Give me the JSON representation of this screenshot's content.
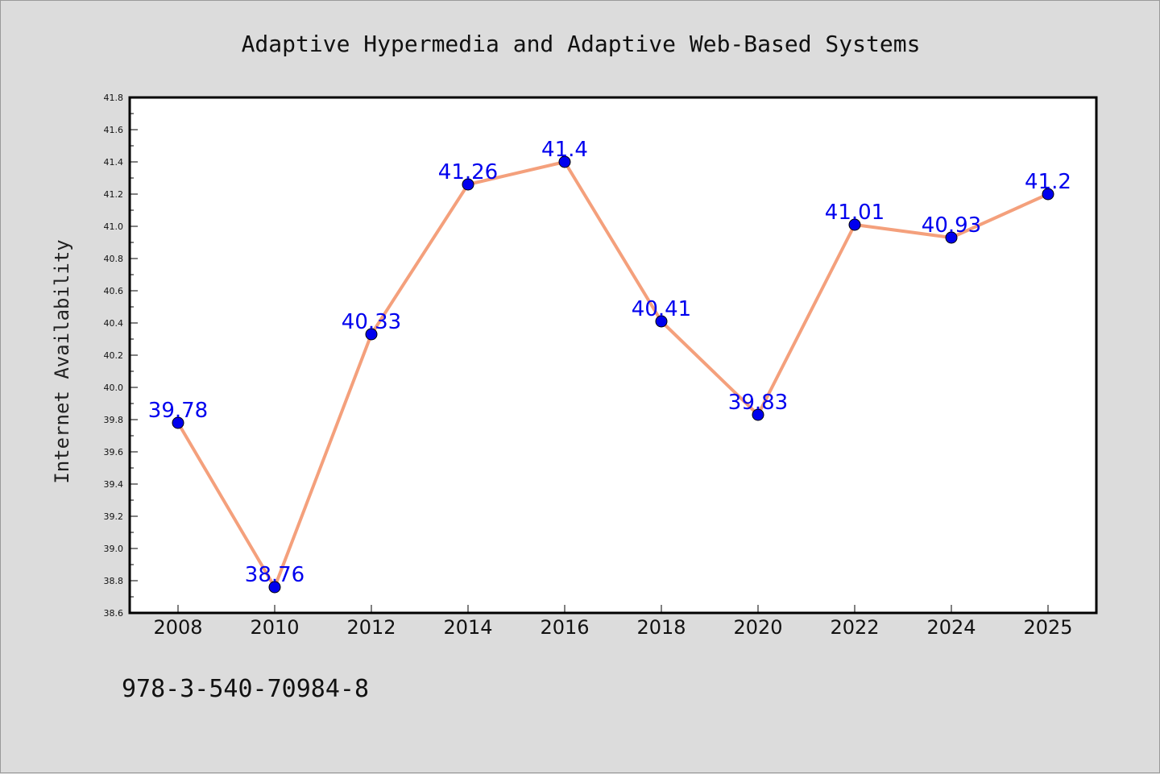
{
  "chart_data": {
    "type": "line",
    "title": "Adaptive Hypermedia and Adaptive Web-Based Systems",
    "xlabel": "",
    "ylabel": "Internet Availability",
    "categories": [
      "2008",
      "2010",
      "2012",
      "2014",
      "2016",
      "2018",
      "2020",
      "2022",
      "2024",
      "2025"
    ],
    "series": [
      {
        "values": [
          39.78,
          38.76,
          40.33,
          41.26,
          41.4,
          40.41,
          39.83,
          41.01,
          40.93,
          41.2
        ],
        "labels": [
          "39.78",
          "38.76",
          "40.33",
          "41.26",
          "41.4",
          "40.41",
          "39.83",
          "41.01",
          "40.93",
          "41.2"
        ]
      }
    ],
    "ylim": [
      38.6,
      41.8
    ],
    "yticks": [
      "38.6",
      "38.8",
      "39.0",
      "39.2",
      "39.4",
      "39.6",
      "39.8",
      "40.0",
      "40.2",
      "40.4",
      "40.6",
      "40.8",
      "41.0",
      "41.2",
      "41.4",
      "41.6",
      "41.8"
    ],
    "grid": false,
    "legend": "none",
    "line_color": "#f4a07c",
    "marker_color": "#0000ee",
    "label_color": "#0000ee",
    "background": "#dcdcdc"
  },
  "footer": {
    "text": "978-3-540-70984-8"
  }
}
